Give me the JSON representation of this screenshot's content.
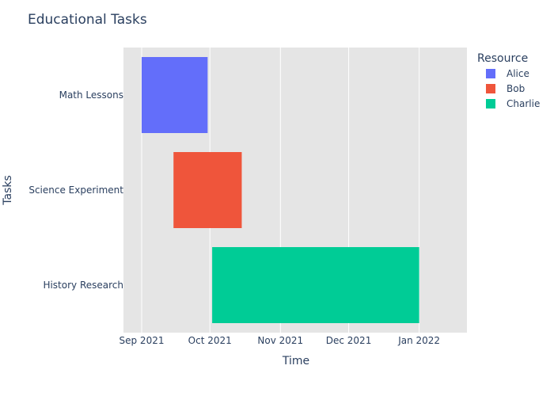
{
  "chart_data": {
    "type": "gantt",
    "title": "Educational Tasks",
    "xlabel": "Time",
    "ylabel": "Tasks",
    "x_axis_type": "date",
    "xlim": [
      "2021-08-24",
      "2022-01-22"
    ],
    "x_ticks": [
      {
        "date": "2021-09-01",
        "label": "Sep 2021"
      },
      {
        "date": "2021-10-01",
        "label": "Oct 2021"
      },
      {
        "date": "2021-11-01",
        "label": "Nov 2021"
      },
      {
        "date": "2021-12-01",
        "label": "Dec 2021"
      },
      {
        "date": "2022-01-01",
        "label": "Jan 2022"
      }
    ],
    "categories": [
      "Math Lessons",
      "Science Experiment",
      "History Research"
    ],
    "tasks": [
      {
        "task": "Math Lessons",
        "start": "2021-09-01",
        "end": "2021-09-30",
        "resource": "Alice"
      },
      {
        "task": "Science Experiment",
        "start": "2021-09-15",
        "end": "2021-10-15",
        "resource": "Bob"
      },
      {
        "task": "History Research",
        "start": "2021-10-02",
        "end": "2022-01-01",
        "resource": "Charlie"
      }
    ],
    "legend": {
      "title": "Resource",
      "position": "top-right",
      "items": [
        {
          "name": "Alice",
          "color": "#636efa"
        },
        {
          "name": "Bob",
          "color": "#ef553b"
        },
        {
          "name": "Charlie",
          "color": "#00cc96"
        }
      ]
    },
    "grid": true,
    "plot_background": "#e5e5e5",
    "grid_color": "#ffffff"
  }
}
